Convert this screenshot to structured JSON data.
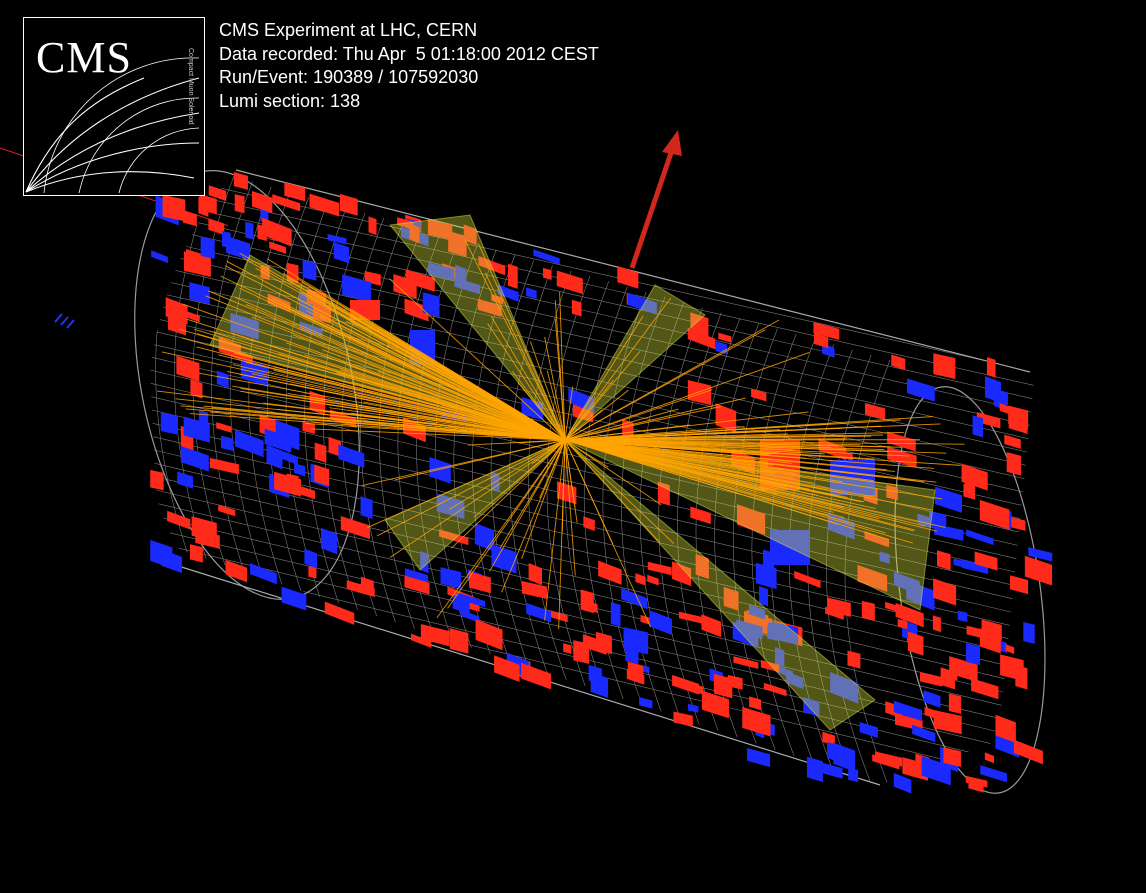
{
  "logo": {
    "text": "CMS",
    "subtitle": "Compact Muon Solenoid"
  },
  "event_info": {
    "line1": "CMS Experiment at LHC, CERN",
    "line2": "Data recorded: Thu Apr  5 01:18:00 2012 CEST",
    "line3": "Run/Event: 190389 / 107592030",
    "line4": "Lumi section: 138"
  },
  "colors": {
    "background": "#000000",
    "ecal": "#ff2a1a",
    "hcal": "#1a2aff",
    "tracks": "#ffa500",
    "jets": "#d8e640",
    "met_arrow": "#d0281c",
    "mesh": "#8a8a8a"
  }
}
